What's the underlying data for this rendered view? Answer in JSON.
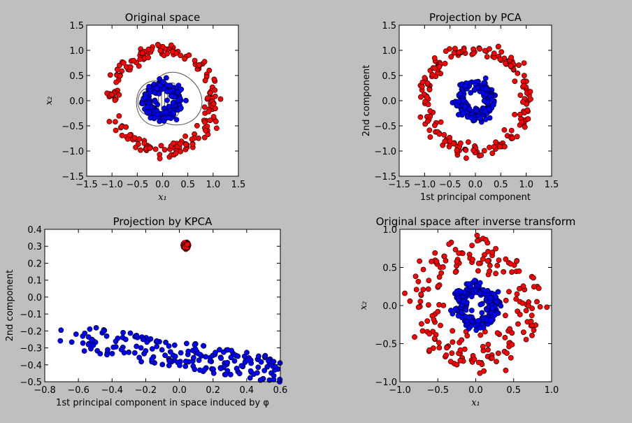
{
  "colors": {
    "figure_bg": "#bfbfbf",
    "class_a": "#ff0000",
    "class_b": "#0000ff",
    "contour": "#555555"
  },
  "chart_data": [
    {
      "type": "scatter",
      "title": "Original space",
      "xlabel": "x₁",
      "ylabel": "x₂",
      "xlim": [
        -1.5,
        1.5
      ],
      "ylim": [
        -1.5,
        1.5
      ],
      "xticks": [
        "−1.5",
        "−1.0",
        "−0.5",
        "0.0",
        "0.5",
        "1.0",
        "1.5"
      ],
      "yticks": [
        "1.5",
        "1.0",
        "0.5",
        "0.0",
        "−0.5",
        "−1.0",
        "−1.5"
      ],
      "contours": true,
      "series": [
        {
          "color": "#ff0000",
          "shape": "ring",
          "cx": 0.0,
          "cy": 0.0,
          "radius": 1.0,
          "spread": 0.07,
          "count": 200
        },
        {
          "color": "#0000ff",
          "shape": "ring",
          "cx": 0.0,
          "cy": 0.0,
          "radius": 0.3,
          "spread": 0.06,
          "count": 200
        }
      ]
    },
    {
      "type": "scatter",
      "title": "Projection by PCA",
      "xlabel": "1st principal component",
      "ylabel": "2nd component",
      "xlim": [
        -1.5,
        1.5
      ],
      "ylim": [
        -1.5,
        1.5
      ],
      "xticks": [
        "−1.5",
        "−1.0",
        "−0.5",
        "0.0",
        "0.5",
        "1.0",
        "1.5"
      ],
      "yticks": [
        "1.5",
        "1.0",
        "0.5",
        "0.0",
        "−0.5",
        "−1.0",
        "−1.5"
      ],
      "series": [
        {
          "color": "#ff0000",
          "shape": "ring",
          "cx": 0.0,
          "cy": 0.0,
          "radius": 1.0,
          "spread": 0.07,
          "count": 200
        },
        {
          "color": "#0000ff",
          "shape": "ring",
          "cx": 0.0,
          "cy": 0.0,
          "radius": 0.3,
          "spread": 0.06,
          "count": 200
        }
      ]
    },
    {
      "type": "scatter",
      "title": "Projection by KPCA",
      "xlabel": "1st principal component in space induced by φ",
      "ylabel": "2nd component",
      "xlim": [
        -0.8,
        0.6
      ],
      "ylim": [
        -0.5,
        0.4
      ],
      "xticks": [
        "−0.8",
        "−0.6",
        "−0.4",
        "−0.2",
        "0.0",
        "0.2",
        "0.4",
        "0.6"
      ],
      "yticks": [
        "0.4",
        "0.3",
        "0.2",
        "0.1",
        "0.0",
        "−0.1",
        "−0.2",
        "−0.3",
        "−0.4",
        "−0.5"
      ],
      "series": [
        {
          "color": "#ff0000",
          "shape": "blob",
          "cx": 0.04,
          "cy": 0.305,
          "sx": 0.006,
          "sy": 0.008,
          "count": 200
        },
        {
          "color": "#0000ff",
          "shape": "band",
          "x0": -0.72,
          "x1": 0.6,
          "y_left": -0.22,
          "y_right": -0.44,
          "y_spread": 0.08,
          "count": 200
        }
      ]
    },
    {
      "type": "scatter",
      "title": "Original space after inverse transform",
      "xlabel": "x₁",
      "ylabel": "x₂",
      "xlim": [
        -1.0,
        1.0
      ],
      "ylim": [
        -1.0,
        1.0
      ],
      "xticks": [
        "−1.0",
        "−0.5",
        "0.0",
        "0.5",
        "1.0"
      ],
      "yticks": [
        "1.0",
        "0.5",
        "0.0",
        "−0.5",
        "−1.0"
      ],
      "series": [
        {
          "color": "#ff0000",
          "shape": "ring",
          "cx": 0.0,
          "cy": 0.0,
          "radius": 0.68,
          "spread": 0.12,
          "count": 200
        },
        {
          "color": "#0000ff",
          "shape": "ring",
          "cx": 0.0,
          "cy": 0.0,
          "radius": 0.23,
          "spread": 0.05,
          "count": 200
        }
      ]
    }
  ]
}
